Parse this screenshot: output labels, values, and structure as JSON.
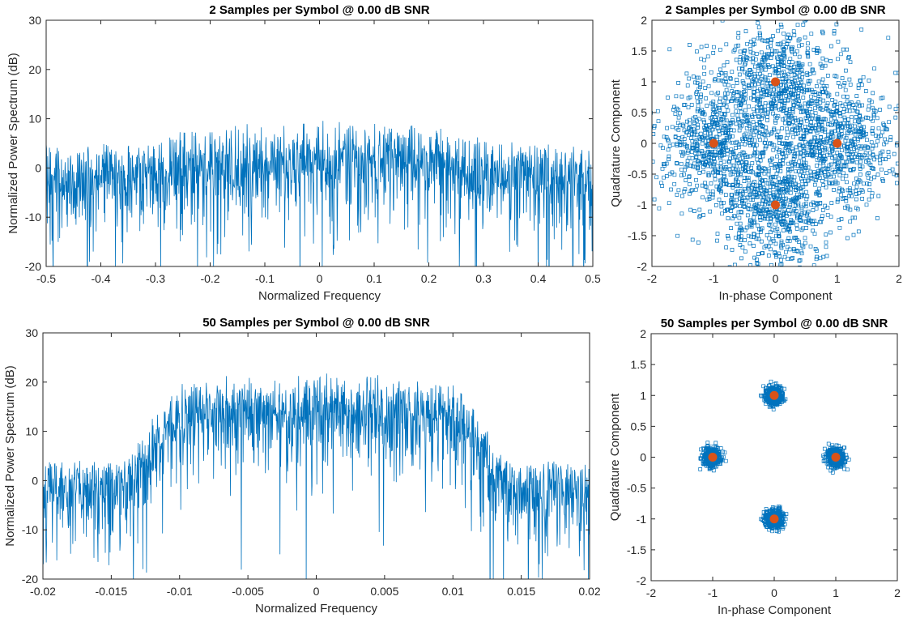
{
  "colors": {
    "series": "#0072BD",
    "reference": "#D95319",
    "axis": "#262626"
  },
  "chart_data": [
    {
      "type": "line",
      "id": "spectrum_2sps",
      "title": "2 Samples per Symbol @ 0.00 dB SNR",
      "xlabel": "Normalized Frequency",
      "ylabel": "Normalized Power Spectrum (dB)",
      "xlim": [
        -0.5,
        0.5
      ],
      "ylim": [
        -20,
        30
      ],
      "xticks": [
        -0.5,
        -0.4,
        -0.3,
        -0.2,
        -0.1,
        0,
        0.1,
        0.2,
        0.3,
        0.4,
        0.5
      ],
      "xtick_labels": [
        "-0.5",
        "-0.4",
        "-0.3",
        "-0.2",
        "-0.1",
        "0",
        "0.1",
        "0.2",
        "0.3",
        "0.4",
        "0.5"
      ],
      "yticks": [
        -20,
        -10,
        0,
        10,
        20,
        30
      ],
      "ytick_labels": [
        "-20",
        "-10",
        "0",
        "10",
        "20",
        "30"
      ],
      "envelope": {
        "x": [
          -0.5,
          -0.4,
          -0.3,
          -0.25,
          -0.2,
          -0.1,
          0,
          0.1,
          0.2,
          0.25,
          0.3,
          0.4,
          0.5
        ],
        "mean_db": [
          -3.5,
          -3,
          -2.5,
          -1.5,
          -0.5,
          0,
          0,
          0,
          -0.5,
          -1.5,
          -2.5,
          -3,
          -3.5
        ],
        "upper_db": [
          5,
          5,
          6,
          8,
          10,
          10,
          10,
          10,
          9,
          8,
          6,
          5,
          5
        ]
      }
    },
    {
      "type": "scatter",
      "id": "constellation_2sps",
      "title": "2 Samples per Symbol @ 0.00 dB SNR",
      "xlabel": "In-phase Component",
      "ylabel": "Quadrature Component",
      "xlim": [
        -2,
        2
      ],
      "ylim": [
        -2,
        2
      ],
      "xticks": [
        -2,
        -1,
        0,
        1,
        2
      ],
      "xtick_labels": [
        "-2",
        "-1",
        "0",
        "1",
        "2"
      ],
      "yticks": [
        -2,
        -1.5,
        -1,
        -0.5,
        0,
        0.5,
        1,
        1.5,
        2
      ],
      "ytick_labels": [
        "-2",
        "-1.5",
        "-1",
        "-0.5",
        "0",
        "0.5",
        "1",
        "1.5",
        "2"
      ],
      "reference_points": [
        [
          0,
          1
        ],
        [
          -1,
          0
        ],
        [
          1,
          0
        ],
        [
          0,
          -1
        ]
      ],
      "received_spread_std": 0.5
    },
    {
      "type": "line",
      "id": "spectrum_50sps",
      "title": "50 Samples per Symbol @ 0.00 dB SNR",
      "xlabel": "Normalized Frequency",
      "ylabel": "Normalized Power Spectrum (dB)",
      "xlim": [
        -0.02,
        0.02
      ],
      "ylim": [
        -20,
        30
      ],
      "xticks": [
        -0.02,
        -0.015,
        -0.01,
        -0.005,
        0,
        0.005,
        0.01,
        0.015,
        0.02
      ],
      "xtick_labels": [
        "-0.02",
        "-0.015",
        "-0.01",
        "-0.005",
        "0",
        "0.005",
        "0.01",
        "0.015",
        "0.02"
      ],
      "yticks": [
        -20,
        -10,
        0,
        10,
        20,
        30
      ],
      "ytick_labels": [
        "-20",
        "-10",
        "0",
        "10",
        "20",
        "30"
      ],
      "envelope": {
        "x": [
          -0.02,
          -0.014,
          -0.013,
          -0.012,
          -0.011,
          -0.009,
          0,
          0.009,
          0.011,
          0.012,
          0.013,
          0.014,
          0.02
        ],
        "mean_db": [
          -4,
          -3,
          0,
          4,
          9,
          12,
          12.5,
          12,
          9,
          4,
          0,
          -3,
          -4
        ],
        "upper_db": [
          4,
          4,
          8,
          14,
          18,
          21,
          22,
          21,
          18,
          14,
          8,
          4,
          4
        ]
      }
    },
    {
      "type": "scatter",
      "id": "constellation_50sps",
      "title": "50 Samples per Symbol @ 0.00 dB SNR",
      "xlabel": "In-phase Component",
      "ylabel": "Quadrature Component",
      "xlim": [
        -2,
        2
      ],
      "ylim": [
        -2,
        2
      ],
      "xticks": [
        -2,
        -1,
        0,
        1,
        2
      ],
      "xtick_labels": [
        "-2",
        "-1",
        "0",
        "1",
        "2"
      ],
      "yticks": [
        -2,
        -1.5,
        -1,
        -0.5,
        0,
        0.5,
        1,
        1.5,
        2
      ],
      "ytick_labels": [
        "-2",
        "-1.5",
        "-1",
        "-0.5",
        "0",
        "0.5",
        "1",
        "1.5",
        "2"
      ],
      "reference_points": [
        [
          0,
          1
        ],
        [
          -1,
          0
        ],
        [
          1,
          0
        ],
        [
          0,
          -1
        ]
      ],
      "received_spread_std": 0.07
    }
  ]
}
